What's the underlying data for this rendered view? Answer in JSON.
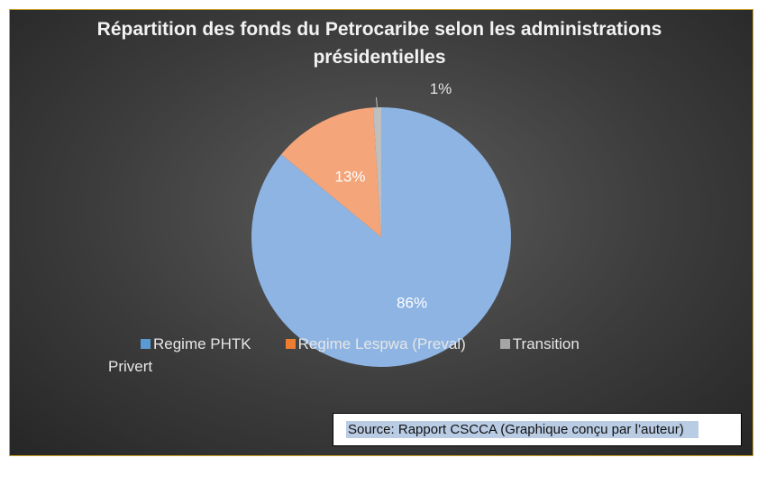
{
  "chart_data": {
    "type": "pie",
    "title": "Répartition des fonds du Petrocaribe selon les administrations présidentielles",
    "categories": [
      "Regime PHTK",
      "Regime Lespwa (Preval)",
      "Transition Privert"
    ],
    "values": [
      86,
      13,
      1
    ],
    "data_labels": [
      "86%",
      "13%",
      "1%"
    ],
    "colors": [
      "#8db4e2",
      "#f4a57a",
      "#bfbfbf"
    ],
    "legend_colors": [
      "#5b9bd5",
      "#ed7d31",
      "#a5a5a5"
    ],
    "legend_position": "bottom"
  },
  "legend": {
    "items": [
      "Regime PHTK",
      "Regime Lespwa (Preval)",
      "Transition"
    ],
    "wrap": "Privert"
  },
  "source": {
    "text": "Source: Rapport CSCCA (Graphique conçu par l’auteur)"
  }
}
